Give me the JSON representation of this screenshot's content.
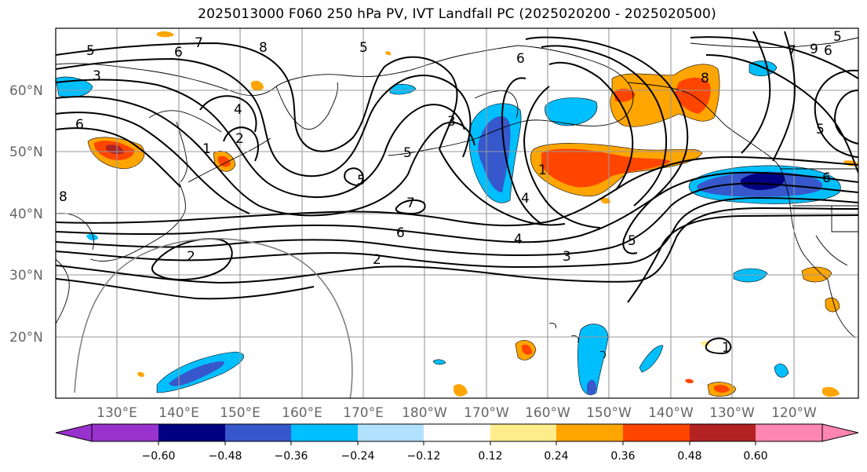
{
  "title": "2025013000 F060 250 hPa PV, IVT Landfall PC (2025020200 - 2025020500)",
  "map": {
    "lat_labels": [
      "60°N",
      "50°N",
      "40°N",
      "30°N",
      "20°N"
    ],
    "lon_labels": [
      "130°E",
      "140°E",
      "150°E",
      "160°E",
      "170°E",
      "180°W",
      "170°W",
      "160°W",
      "150°W",
      "140°W",
      "130°W",
      "120°W"
    ],
    "contour_labels": [
      "5",
      "7",
      "8",
      "6",
      "5",
      "3",
      "6",
      "4",
      "2",
      "1",
      "5",
      "3",
      "5",
      "6",
      "4",
      "2",
      "1",
      "8",
      "2",
      "5",
      "6",
      "1",
      "7",
      "4",
      "3",
      "5",
      "9",
      "6",
      "5",
      "8",
      "6",
      "7"
    ]
  },
  "colorbar": {
    "tick_labels": [
      "−0.60",
      "−0.48",
      "−0.36",
      "−0.24",
      "−0.12",
      "0.12",
      "0.24",
      "0.36",
      "0.48",
      "0.60"
    ],
    "colors": [
      "#9932cc",
      "#000080",
      "#3658cc",
      "#00bfff",
      "#b0e2ff",
      "#ffffff",
      "#ffec8b",
      "#ffa500",
      "#ff4500",
      "#b22222",
      "#ff86b0"
    ]
  }
}
